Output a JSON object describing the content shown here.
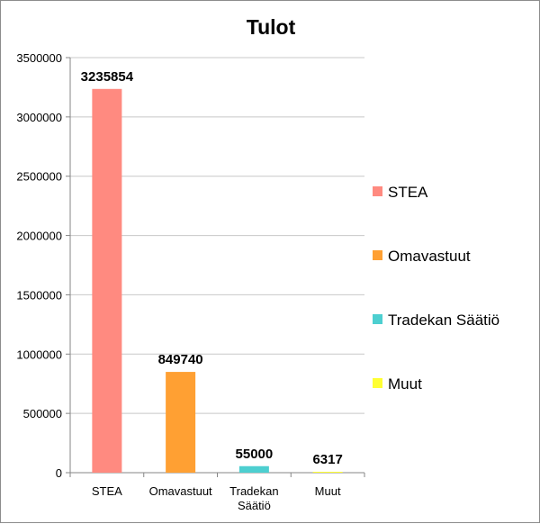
{
  "chart_data": {
    "type": "bar",
    "title": "Tulot",
    "xlabel": "",
    "ylabel": "",
    "categories": [
      "STEA",
      "Omavastuut",
      "Tradekan Säätiö",
      "Muut"
    ],
    "category_label_lines": [
      [
        "STEA"
      ],
      [
        "Omavastuut"
      ],
      [
        "Tradekan",
        "Säätiö"
      ],
      [
        "Muut"
      ]
    ],
    "values": [
      3235854,
      849740,
      55000,
      6317
    ],
    "data_labels": [
      "3235854",
      "849740",
      "55000",
      "6317"
    ],
    "colors": [
      "#ff8a80",
      "#ffa033",
      "#4dcfd0",
      "#ffff33"
    ],
    "ylim": [
      0,
      3500000
    ],
    "yticks": [
      0,
      500000,
      1000000,
      1500000,
      2000000,
      2500000,
      3000000,
      3500000
    ],
    "grid": true,
    "legend": {
      "position": "right",
      "entries": [
        "STEA",
        "Omavastuut",
        "Tradekan Säätiö",
        "Muut"
      ]
    }
  }
}
